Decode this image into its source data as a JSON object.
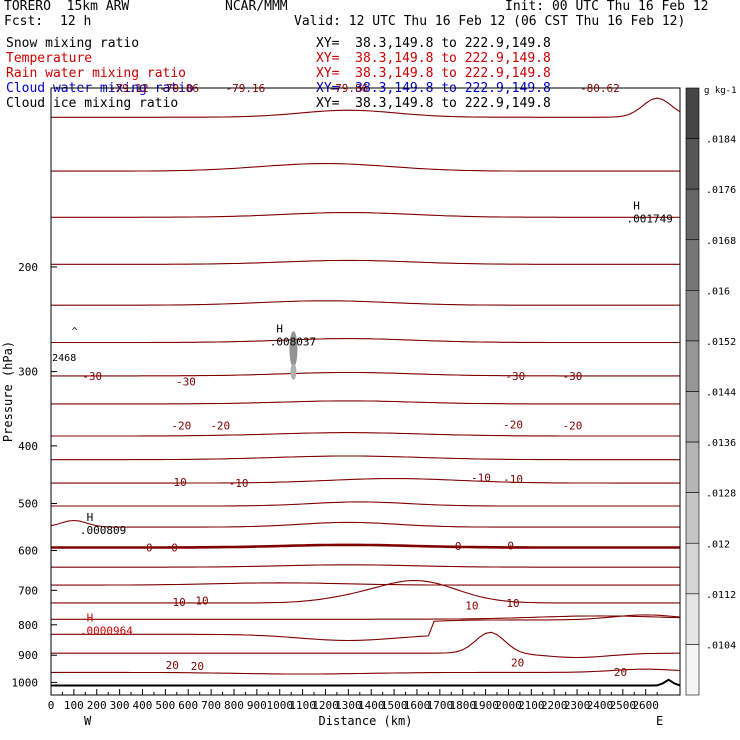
{
  "header": {
    "model": "TORERO  15km ARW",
    "center": "NCAR/MMM",
    "init": "Init: 00 UTC Thu 16 Feb 12",
    "fcst_label": "Fcst:",
    "fcst_value": "12 h",
    "valid": "Valid: 12 UTC Thu 16 Feb 12 (06 CST Thu 16 Feb 12)"
  },
  "fields": [
    {
      "name": "Snow mixing ratio",
      "xy": "XY=  38.3,149.8 to 222.9,149.8",
      "color": "#000000"
    },
    {
      "name": "Temperature",
      "xy": "XY=  38.3,149.8 to 222.9,149.8",
      "color": "#cc0000"
    },
    {
      "name": "Rain water mixing ratio",
      "xy": "XY=  38.3,149.8 to 222.9,149.8",
      "color": "#cc0000"
    },
    {
      "name": "Cloud water mixing ratio",
      "xy": "XY=  38.3,149.8 to 222.9,149.8",
      "color": "#0000cc"
    },
    {
      "name": "Cloud ice mixing ratio",
      "xy": "XY=  38.3,149.8 to 222.9,149.8",
      "color": "#000000"
    }
  ],
  "chart_data": {
    "type": "contour",
    "xlabel": "Distance (km)",
    "ylabel": "Pressure (hPa)",
    "xlim": [
      0,
      2750
    ],
    "ylim": [
      1050,
      100
    ],
    "y_scale": "log",
    "x_ticks": [
      "0",
      "100",
      "200",
      "300",
      "400",
      "500",
      "600",
      "700",
      "800",
      "900",
      "1000",
      "1100",
      "1200",
      "1300",
      "1400",
      "1500",
      "1600",
      "1700",
      "1800",
      "1900",
      "2000",
      "2100",
      "2200",
      "2300",
      "2400",
      "2500",
      "2600"
    ],
    "y_ticks": [
      "200",
      "300",
      "400",
      "500",
      "600",
      "700",
      "800",
      "900",
      "1000"
    ],
    "x_end_labels": [
      "W",
      "E"
    ],
    "colorbar": {
      "unit": "g kg-1",
      "labels": [
        ".0184",
        ".0176",
        ".0168",
        ".016",
        ".0152",
        ".0144",
        ".0136",
        ".0128",
        ".012",
        ".0112",
        ".0104"
      ]
    },
    "contour_color": "#800000",
    "contour_labels": [
      {
        "text": "-79.12",
        "x": 340,
        "p": 100
      },
      {
        "text": "-79.86",
        "x": 560,
        "p": 100
      },
      {
        "text": "-79.16",
        "x": 850,
        "p": 100
      },
      {
        "text": "-79.86",
        "x": 1300,
        "p": 100
      },
      {
        "text": "-80.62",
        "x": 2400,
        "p": 100
      },
      {
        "text": "-30",
        "x": 180,
        "p": 305
      },
      {
        "text": "-30",
        "x": 590,
        "p": 312
      },
      {
        "text": "-30",
        "x": 2030,
        "p": 305
      },
      {
        "text": "-30",
        "x": 2280,
        "p": 305
      },
      {
        "text": "-20",
        "x": 570,
        "p": 370
      },
      {
        "text": "-20",
        "x": 740,
        "p": 370
      },
      {
        "text": "-20",
        "x": 2020,
        "p": 368
      },
      {
        "text": "-20",
        "x": 2280,
        "p": 370
      },
      {
        "text": "-10",
        "x": 550,
        "p": 460
      },
      {
        "text": "-10",
        "x": 820,
        "p": 462
      },
      {
        "text": "-10",
        "x": 1880,
        "p": 452
      },
      {
        "text": "-10",
        "x": 2020,
        "p": 455
      },
      {
        "text": "0",
        "x": 430,
        "p": 593
      },
      {
        "text": "0",
        "x": 540,
        "p": 593
      },
      {
        "text": "0",
        "x": 1780,
        "p": 590
      },
      {
        "text": "0",
        "x": 2010,
        "p": 588
      },
      {
        "text": "10",
        "x": 560,
        "p": 732
      },
      {
        "text": "10",
        "x": 660,
        "p": 728
      },
      {
        "text": "10",
        "x": 1840,
        "p": 742
      },
      {
        "text": "10",
        "x": 2020,
        "p": 735
      },
      {
        "text": "20",
        "x": 530,
        "p": 935
      },
      {
        "text": "20",
        "x": 640,
        "p": 938
      },
      {
        "text": "20",
        "x": 2040,
        "p": 925
      },
      {
        "text": "20",
        "x": 2490,
        "p": 960
      }
    ],
    "extrema": [
      {
        "label": "H",
        "value": ".008037",
        "x": 1000,
        "p": 258,
        "color": "#000000"
      },
      {
        "label": "H",
        "value": ".001749",
        "x": 2560,
        "p": 160,
        "color": "#000000"
      },
      {
        "label": "H",
        "value": ".000809",
        "x": 170,
        "p": 535,
        "color": "#000000"
      },
      {
        "label": "H",
        "value": ".0000964",
        "x": 170,
        "p": 790,
        "color": "#cc0000"
      }
    ],
    "stray_labels": [
      {
        "text": "2468",
        "x": 5,
        "p": 288
      },
      {
        "text": "^",
        "x": 90,
        "p": 260
      }
    ]
  }
}
